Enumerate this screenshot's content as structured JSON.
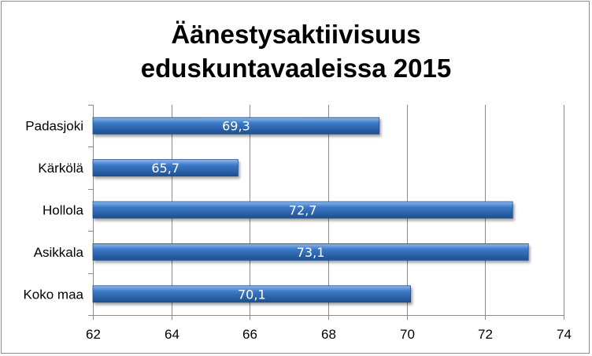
{
  "chart_data": {
    "type": "bar",
    "orientation": "horizontal",
    "title_lines": [
      "Äänestysaktiivisuus",
      "eduskuntavaaleissa 2015"
    ],
    "categories": [
      "Padasjoki",
      "Kärkölä",
      "Hollola",
      "Asikkala",
      "Koko maa"
    ],
    "values": [
      69.3,
      65.7,
      72.7,
      73.1,
      70.1
    ],
    "value_labels": [
      "69,3",
      "65,7",
      "72,7",
      "73,1",
      "70,1"
    ],
    "xlim": [
      62,
      74
    ],
    "xticks": [
      62,
      64,
      66,
      68,
      70,
      72,
      74
    ],
    "xtick_labels": [
      "62",
      "64",
      "66",
      "68",
      "70",
      "72",
      "74"
    ],
    "xlabel": "",
    "ylabel": "",
    "grid": "vertical",
    "legend": "none",
    "bar_color": "#3a78c6",
    "bar_color_light": "#8fb9ec",
    "bar_color_dark": "#1f4f8f"
  }
}
